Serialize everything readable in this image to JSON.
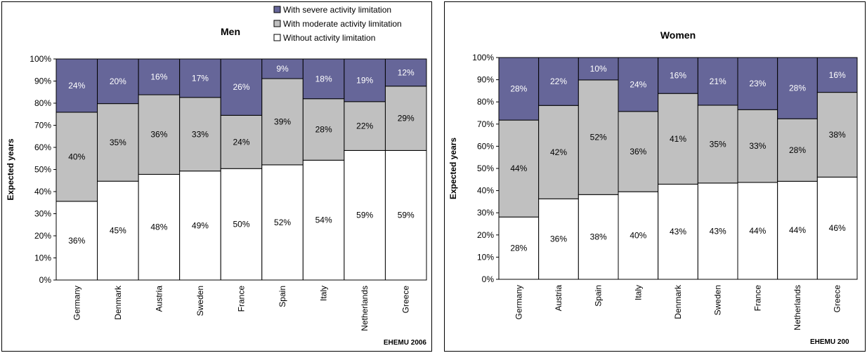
{
  "colors": {
    "severe": "#666699",
    "moderate": "#c0c0c0",
    "without": "#ffffff",
    "outline": "#000000",
    "seg_label": "#000000",
    "seg_label_on_severe": "#ffffff"
  },
  "legend": {
    "severe": "With severe activity limitation",
    "moderate": "With moderate activity limitation",
    "without": "Without activity limitation"
  },
  "source_label": "EHEMU 2006",
  "source_label_clipped": "EHEMU 200",
  "chart_data": [
    {
      "type": "bar",
      "stacked": true,
      "title": "Men",
      "ylabel": "Expected years",
      "xlabel": "",
      "ylim": [
        0,
        100
      ],
      "yticks": [
        "0%",
        "10%",
        "20%",
        "30%",
        "40%",
        "50%",
        "60%",
        "70%",
        "80%",
        "90%",
        "100%"
      ],
      "legend_position": "top-right",
      "categories": [
        "Germany",
        "Denmark",
        "Austria",
        "Sweden",
        "France",
        "Spain",
        "Italy",
        "Netherlands",
        "Greece"
      ],
      "series": [
        {
          "name": "Without activity limitation",
          "values": [
            35.6,
            44.7,
            47.8,
            49.3,
            50.4,
            52.1,
            54.2,
            58.6,
            58.6
          ],
          "labels": [
            "36%",
            "45%",
            "48%",
            "49%",
            "50%",
            "52%",
            "54%",
            "59%",
            "59%"
          ]
        },
        {
          "name": "With moderate activity limitation",
          "values": [
            40.3,
            35.1,
            36.0,
            33.3,
            24.1,
            39.0,
            27.8,
            22.1,
            29.1
          ],
          "labels": [
            "40%",
            "35%",
            "36%",
            "33%",
            "24%",
            "39%",
            "28%",
            "22%",
            "29%"
          ]
        },
        {
          "name": "With severe activity limitation",
          "values": [
            24.1,
            20.2,
            16.2,
            17.4,
            25.5,
            8.9,
            18.0,
            19.3,
            12.3
          ],
          "labels": [
            "24%",
            "20%",
            "16%",
            "17%",
            "26%",
            "9%",
            "18%",
            "19%",
            "12%"
          ]
        }
      ]
    },
    {
      "type": "bar",
      "stacked": true,
      "title": "Women",
      "ylabel": "Expected years",
      "xlabel": "",
      "ylim": [
        0,
        100
      ],
      "yticks": [
        "0%",
        "10%",
        "20%",
        "30%",
        "40%",
        "50%",
        "60%",
        "70%",
        "80%",
        "90%",
        "100%"
      ],
      "categories": [
        "Germany",
        "Austria",
        "Spain",
        "Italy",
        "Denmark",
        "Sweden",
        "France",
        "Netherlands",
        "Greece"
      ],
      "series": [
        {
          "name": "Without activity limitation",
          "values": [
            28.1,
            36.3,
            38.2,
            39.5,
            42.9,
            43.4,
            43.7,
            44.2,
            46.1
          ],
          "labels": [
            "28%",
            "36%",
            "38%",
            "40%",
            "43%",
            "43%",
            "44%",
            "44%",
            "46%"
          ]
        },
        {
          "name": "With moderate activity limitation",
          "values": [
            43.7,
            42.1,
            51.7,
            36.2,
            40.9,
            35.1,
            32.8,
            28.2,
            38.2
          ],
          "labels": [
            "44%",
            "42%",
            "52%",
            "36%",
            "41%",
            "35%",
            "33%",
            "28%",
            "38%"
          ]
        },
        {
          "name": "With severe activity limitation",
          "values": [
            28.2,
            21.6,
            10.1,
            24.3,
            16.2,
            21.5,
            23.5,
            27.6,
            15.7
          ],
          "labels": [
            "28%",
            "22%",
            "10%",
            "24%",
            "16%",
            "21%",
            "23%",
            "28%",
            "16%"
          ]
        }
      ]
    }
  ]
}
